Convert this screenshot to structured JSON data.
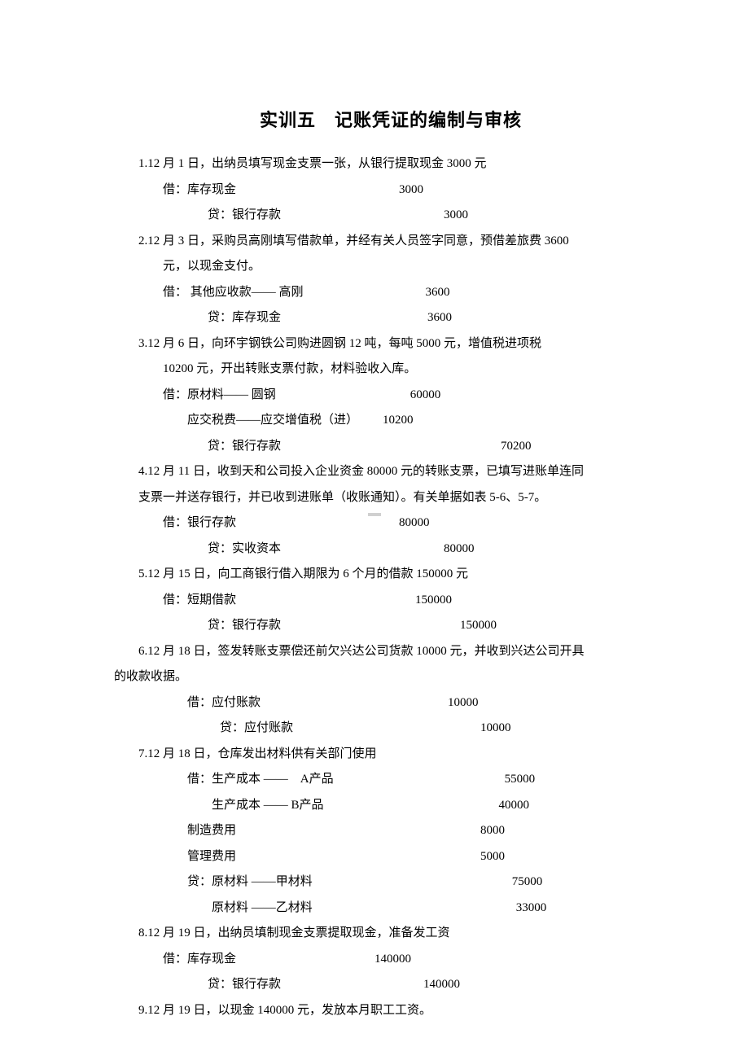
{
  "title": "实训五　记账凭证的编制与审核",
  "items": [
    {
      "num": "1.",
      "desc": "12 月 1 日，出纳员填写现金支票一张，从银行提取现金 3000 元",
      "entries": [
        {
          "label": "借：库存现金",
          "amount": "3000",
          "label_indent": 30,
          "amount_indent": 200
        },
        {
          "label": "贷：银行存款",
          "amount": "3000",
          "label_indent": 85,
          "amount_indent": 200
        }
      ]
    },
    {
      "num": "2.",
      "desc": "12 月 3 日，采购员高刚填写借款单，并经有关人员签字同意，预借差旅费 3600",
      "desc2": "元，以现金支付。",
      "entries": [
        {
          "label": "借： 其他应收款—— 高刚",
          "amount": "3600",
          "label_indent": 30,
          "amount_indent": 150
        },
        {
          "label": "贷：库存现金",
          "amount": "3600",
          "label_indent": 85,
          "amount_indent": 180
        }
      ]
    },
    {
      "num": "3.",
      "desc": "12 月 6 日，向环宇钢铁公司购进圆钢 12 吨，每吨 5000 元，增值税进项税",
      "desc2": "10200 元，开出转账支票付款，材料验收入库。",
      "entries": [
        {
          "label": "借：原材料—— 圆钢",
          "amount": "60000",
          "label_indent": 30,
          "amount_indent": 165
        },
        {
          "label": "应交税费——应交增值税（进）",
          "amount": "10200",
          "label_indent": 60,
          "amount_indent": 30
        },
        {
          "label": "贷：银行存款",
          "amount": "70200",
          "label_indent": 85,
          "amount_indent": 270
        }
      ]
    },
    {
      "num": "4.",
      "desc": "12 月 11 日，收到天和公司投入企业资金 80000 元的转账支票，已填写进账单连同",
      "desc2b": "支票一并送存银行，并已收到进账单（收账通知）。有关单据如表 5-6、5-7。",
      "entries": [
        {
          "label": "借：银行存款",
          "amount": "80000",
          "label_indent": 30,
          "amount_indent": 200
        },
        {
          "label": "贷：实收资本",
          "amount": "80000",
          "label_indent": 85,
          "amount_indent": 200
        }
      ]
    },
    {
      "num": "5.",
      "desc": "12 月 15 日，向工商银行借入期限为 6 个月的借款 150000 元",
      "entries": [
        {
          "label": "借：短期借款",
          "amount": "150000",
          "label_indent": 30,
          "amount_indent": 220
        },
        {
          "label": "贷：银行存款",
          "amount": "150000",
          "label_indent": 85,
          "amount_indent": 220
        }
      ]
    },
    {
      "num": "6.",
      "desc": "12 月 18 日，签发转账支票偿还前欠兴达公司货款 10000 元，并收到兴达公司开具",
      "desc2c": "的收款收据。",
      "entries": [
        {
          "label": "借：应付账款",
          "amount": "10000",
          "label_indent": 60,
          "amount_indent": 230
        },
        {
          "label": "贷：应付账款",
          "amount": "10000",
          "label_indent": 100,
          "amount_indent": 230
        }
      ]
    },
    {
      "num": "7.",
      "desc": "12 月 18 日，仓库发出材料供有关部门使用",
      "entries": [
        {
          "label": "借：生产成本 ——　A产品",
          "amount": "55000",
          "label_indent": 60,
          "amount_indent": 210
        },
        {
          "label": "生产成本 —— B产品",
          "amount": "40000",
          "label_indent": 90,
          "amount_indent": 215
        },
        {
          "label": "制造费用",
          "amount": "8000",
          "label_indent": 60,
          "amount_indent": 300
        },
        {
          "label": "管理费用",
          "amount": "5000",
          "label_indent": 60,
          "amount_indent": 300
        },
        {
          "label": "贷：原材料 ——甲材料",
          "amount": "75000",
          "label_indent": 60,
          "amount_indent": 245
        },
        {
          "label": "原材料 ——乙材料",
          "amount": "33000",
          "label_indent": 90,
          "amount_indent": 250
        }
      ]
    },
    {
      "num": "8.",
      "desc": "12 月 19 日，出纳员填制现金支票提取现金，准备发工资",
      "entries": [
        {
          "label": "借：库存现金",
          "amount": "140000",
          "label_indent": 30,
          "amount_indent": 170
        },
        {
          "label": "贷：银行存款",
          "amount": "140000",
          "label_indent": 85,
          "amount_indent": 175
        }
      ]
    },
    {
      "num": "9.",
      "desc": "12 月 19 日，以现金 140000 元，发放本月职工工资。",
      "entries": []
    }
  ]
}
